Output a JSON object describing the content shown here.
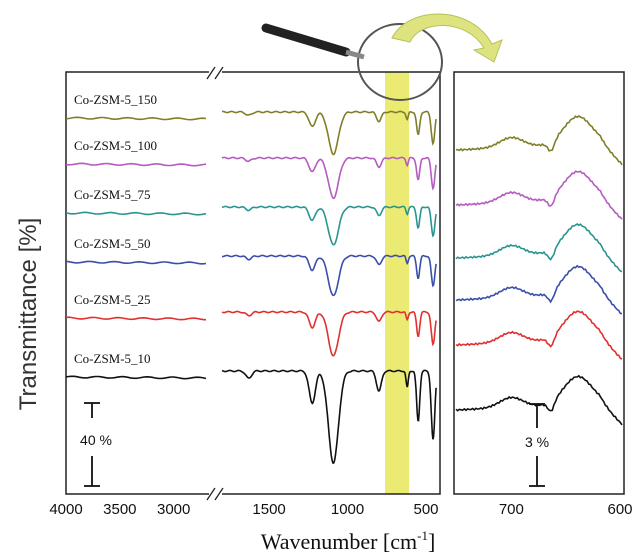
{
  "chart_data": {
    "type": "line",
    "ylabel": "Transmittance  [%]",
    "xlabel_main": "Wavenumber [cm",
    "xlabel_sup": "-1",
    "xlabel_end": "]",
    "panels": [
      {
        "id": "full",
        "x_segments": [
          {
            "from": 4000,
            "to": 2700,
            "ticks": [
              "4000",
              "3500",
              "3000"
            ],
            "tick_values": [
              4000,
              3500,
              3000
            ]
          },
          {
            "from": 1800,
            "to": 430,
            "ticks": [
              "1500",
              "1000",
              "500"
            ],
            "tick_values": [
              1500,
              1000,
              500
            ]
          }
        ],
        "scale_bar_label": "40 %",
        "highlight_band_cm": [
          600,
          780
        ]
      },
      {
        "id": "zoom",
        "xlim": [
          750,
          600
        ],
        "ticks": [
          "700",
          "600"
        ],
        "tick_values": [
          700,
          600
        ],
        "scale_bar_label": "3 %"
      }
    ],
    "series": [
      {
        "name": "Co-ZSM-5_150",
        "color": "#7f7f2a"
      },
      {
        "name": "Co-ZSM-5_100",
        "color": "#b45cc0"
      },
      {
        "name": "Co-ZSM-5_75",
        "color": "#2a9590"
      },
      {
        "name": "Co-ZSM-5_50",
        "color": "#3b4fa8"
      },
      {
        "name": "Co-ZSM-5_25",
        "color": "#e0312f"
      },
      {
        "name": "Co-ZSM-5_10",
        "color": "#111111"
      }
    ],
    "highlight_color": "#e8e85a",
    "arrow_color": "#d9e07a"
  }
}
